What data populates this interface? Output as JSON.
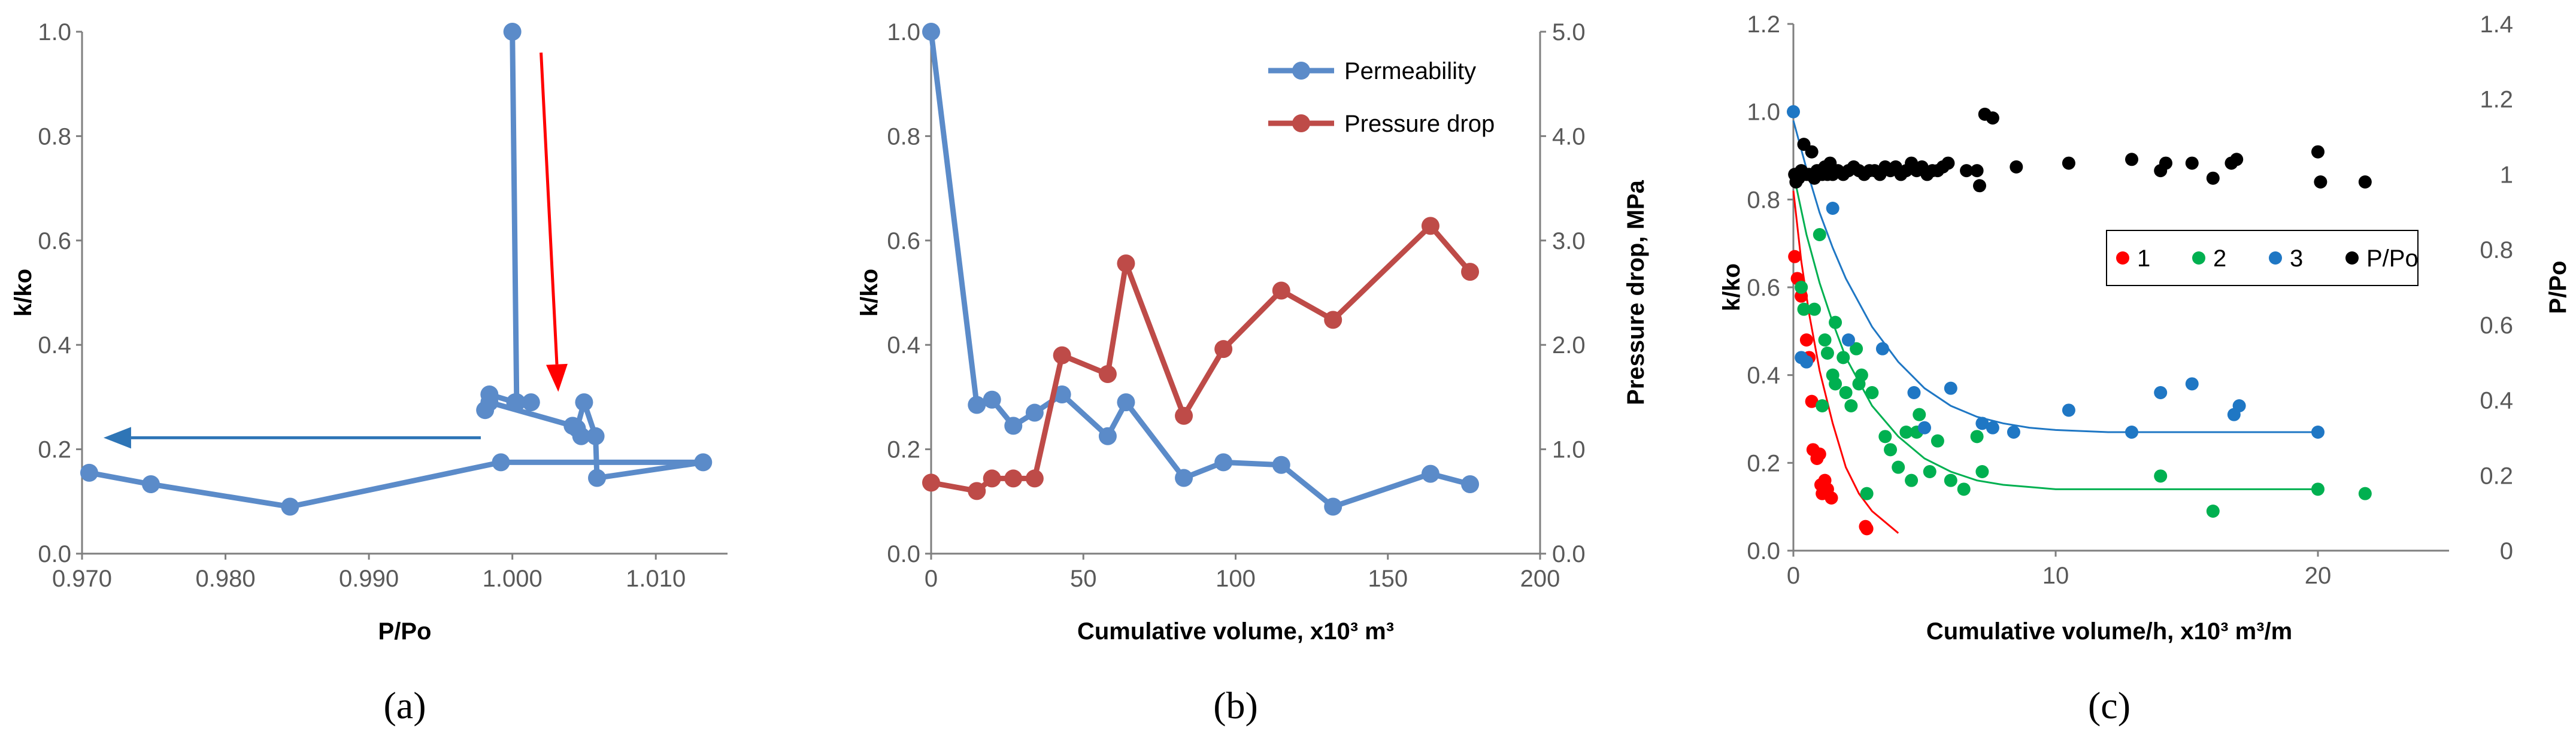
{
  "chart_data": [
    {
      "type": "line",
      "panel_label": "(a)",
      "xlabel": "P/Po",
      "ylabel": "k/ko",
      "xlim": [
        0.97,
        1.015
      ],
      "ylim": [
        0,
        1.0
      ],
      "xticks": [
        "0.970",
        "0.980",
        "0.990",
        "1.000",
        "1.010"
      ],
      "yticks": [
        "0.0",
        "0.2",
        "0.4",
        "0.6",
        "0.8",
        "1.0"
      ],
      "color": "#5B8BC9",
      "series": [
        {
          "x": [
            1.0,
            1.0003,
            1.0013,
            1.0002,
            0.9984,
            0.9981,
            0.9984,
            1.0042,
            1.0048,
            1.0045,
            1.005,
            1.0058,
            1.0059,
            1.0133,
            0.9992,
            0.9845,
            0.9748,
            0.9705
          ],
          "y": [
            1.0,
            0.29,
            0.29,
            0.29,
            0.305,
            0.275,
            0.29,
            0.245,
            0.225,
            0.24,
            0.29,
            0.225,
            0.145,
            0.175,
            0.175,
            0.09,
            0.133,
            0.155
          ]
        }
      ],
      "annotations": [
        {
          "type": "arrow",
          "color": "#FF0000",
          "from": [
            1.002,
            0.96
          ],
          "to": [
            1.0032,
            0.31
          ]
        },
        {
          "type": "arrow",
          "color": "#2E75B6",
          "from": [
            0.9978,
            0.222
          ],
          "to": [
            0.9715,
            0.222
          ]
        }
      ]
    },
    {
      "type": "line",
      "panel_label": "(b)",
      "xlabel": "Cumulative volume, x10³ m³",
      "ylabel": "k/ko",
      "y2label": "Pressure drop, MPa",
      "xlim": [
        0,
        200
      ],
      "ylim": [
        0,
        1.0
      ],
      "y2lim": [
        0,
        5.0
      ],
      "xticks": [
        "0",
        "50",
        "100",
        "150",
        "200"
      ],
      "yticks": [
        "0.0",
        "0.2",
        "0.4",
        "0.6",
        "0.8",
        "1.0"
      ],
      "y2ticks": [
        "0.0",
        "1.0",
        "2.0",
        "3.0",
        "4.0",
        "5.0"
      ],
      "legend_position": "top-right",
      "series": [
        {
          "name": "Permeability",
          "axis": "left",
          "color": "#5B8BC9",
          "x": [
            0,
            15,
            20,
            27,
            34,
            43,
            58,
            64,
            83,
            96,
            115,
            132,
            164,
            177
          ],
          "y": [
            1.0,
            0.285,
            0.295,
            0.245,
            0.27,
            0.305,
            0.225,
            0.29,
            0.145,
            0.175,
            0.17,
            0.09,
            0.153,
            0.133
          ]
        },
        {
          "name": "Pressure drop",
          "axis": "right",
          "color": "#BE4B48",
          "x": [
            0,
            15,
            20,
            27,
            34,
            43,
            58,
            64,
            83,
            96,
            115,
            132,
            164,
            177
          ],
          "y": [
            0.68,
            0.6,
            0.72,
            0.72,
            0.72,
            1.9,
            1.72,
            2.78,
            1.32,
            1.96,
            2.52,
            2.24,
            3.14,
            2.7
          ]
        }
      ]
    },
    {
      "type": "scatter",
      "panel_label": "(c)",
      "xlabel": "Cumulative volume/h, x10³ m³/m",
      "ylabel": "k/ko",
      "y2label": "P/Po",
      "xlim": [
        0,
        25
      ],
      "ylim": [
        0,
        1.2
      ],
      "y2lim": [
        0,
        1.4
      ],
      "xticks": [
        "0",
        "10",
        "20"
      ],
      "yticks": [
        "0.0",
        "0.2",
        "0.4",
        "0.6",
        "0.8",
        "1.0",
        "1.2"
      ],
      "y2ticks": [
        "0",
        "0.2",
        "0.4",
        "0.6",
        "0.8",
        "1",
        "1.2",
        "1.4"
      ],
      "legend_position": "right",
      "series": [
        {
          "name": "1",
          "axis": "left",
          "color": "#FF0000",
          "points": [
            [
              0.05,
              0.67
            ],
            [
              0.15,
              0.62
            ],
            [
              0.3,
              0.58
            ],
            [
              0.5,
              0.48
            ],
            [
              0.6,
              0.44
            ],
            [
              0.7,
              0.34
            ],
            [
              0.75,
              0.23
            ],
            [
              0.9,
              0.21
            ],
            [
              1.0,
              0.22
            ],
            [
              1.05,
              0.15
            ],
            [
              1.1,
              0.13
            ],
            [
              1.2,
              0.16
            ],
            [
              1.3,
              0.14
            ],
            [
              1.45,
              0.12
            ],
            [
              2.75,
              0.055
            ],
            [
              2.8,
              0.05
            ]
          ],
          "fit": [
            [
              0,
              0.82
            ],
            [
              0.3,
              0.66
            ],
            [
              0.6,
              0.54
            ],
            [
              1,
              0.41
            ],
            [
              1.5,
              0.29
            ],
            [
              2,
              0.19
            ],
            [
              2.5,
              0.13
            ],
            [
              3,
              0.09
            ],
            [
              3.5,
              0.065
            ],
            [
              4,
              0.04
            ]
          ]
        },
        {
          "name": "2",
          "axis": "left",
          "color": "#00B050",
          "points": [
            [
              0.3,
              0.6
            ],
            [
              0.4,
              0.55
            ],
            [
              0.8,
              0.55
            ],
            [
              1.0,
              0.72
            ],
            [
              1.2,
              0.48
            ],
            [
              1.3,
              0.45
            ],
            [
              1.5,
              0.4
            ],
            [
              1.6,
              0.52
            ],
            [
              1.9,
              0.44
            ],
            [
              2.0,
              0.36
            ],
            [
              2.2,
              0.33
            ],
            [
              2.4,
              0.46
            ],
            [
              2.5,
              0.38
            ],
            [
              2.6,
              0.4
            ],
            [
              3.0,
              0.36
            ],
            [
              3.5,
              0.26
            ],
            [
              3.7,
              0.23
            ],
            [
              4.0,
              0.19
            ],
            [
              4.3,
              0.27
            ],
            [
              4.5,
              0.16
            ],
            [
              4.7,
              0.27
            ],
            [
              4.8,
              0.31
            ],
            [
              5.2,
              0.18
            ],
            [
              5.5,
              0.25
            ],
            [
              6.0,
              0.16
            ],
            [
              6.5,
              0.14
            ],
            [
              7.0,
              0.26
            ],
            [
              7.2,
              0.18
            ],
            [
              14.0,
              0.17
            ],
            [
              16.0,
              0.09
            ],
            [
              20.0,
              0.14
            ],
            [
              21.8,
              0.13
            ],
            [
              2.8,
              0.13
            ],
            [
              1.1,
              0.33
            ],
            [
              1.6,
              0.38
            ]
          ],
          "fit": [
            [
              0,
              0.86
            ],
            [
              0.5,
              0.72
            ],
            [
              1,
              0.61
            ],
            [
              1.5,
              0.52
            ],
            [
              2,
              0.44
            ],
            [
              3,
              0.33
            ],
            [
              4,
              0.26
            ],
            [
              5,
              0.21
            ],
            [
              6,
              0.18
            ],
            [
              7,
              0.16
            ],
            [
              8,
              0.15
            ],
            [
              9,
              0.145
            ],
            [
              10,
              0.14
            ],
            [
              12,
              0.14
            ],
            [
              15,
              0.14
            ],
            [
              20,
              0.14
            ]
          ]
        },
        {
          "name": "3",
          "axis": "left",
          "color": "#1F77C4",
          "points": [
            [
              0,
              1.0
            ],
            [
              0.3,
              0.44
            ],
            [
              0.5,
              0.43
            ],
            [
              1.5,
              0.78
            ],
            [
              2.1,
              0.48
            ],
            [
              3.4,
              0.46
            ],
            [
              4.6,
              0.36
            ],
            [
              6.0,
              0.37
            ],
            [
              7.2,
              0.29
            ],
            [
              7.6,
              0.28
            ],
            [
              8.4,
              0.27
            ],
            [
              10.5,
              0.32
            ],
            [
              12.9,
              0.27
            ],
            [
              14.0,
              0.36
            ],
            [
              15.2,
              0.38
            ],
            [
              16.8,
              0.31
            ],
            [
              17.0,
              0.33
            ],
            [
              20.0,
              0.27
            ],
            [
              5.0,
              0.28
            ]
          ],
          "fit": [
            [
              0,
              0.98
            ],
            [
              0.5,
              0.87
            ],
            [
              1,
              0.77
            ],
            [
              1.5,
              0.69
            ],
            [
              2,
              0.62
            ],
            [
              3,
              0.51
            ],
            [
              4,
              0.43
            ],
            [
              5,
              0.37
            ],
            [
              6,
              0.33
            ],
            [
              7,
              0.305
            ],
            [
              8,
              0.29
            ],
            [
              9,
              0.28
            ],
            [
              10,
              0.275
            ],
            [
              12,
              0.27
            ],
            [
              15,
              0.27
            ],
            [
              20,
              0.27
            ]
          ]
        },
        {
          "name": "P/Po",
          "axis": "right",
          "color": "#000000",
          "points": [
            [
              0.05,
              1.0
            ],
            [
              0.1,
              0.98
            ],
            [
              0.2,
              0.99
            ],
            [
              0.3,
              1.01
            ],
            [
              0.4,
              1.08
            ],
            [
              0.5,
              1.0
            ],
            [
              0.6,
              1.0
            ],
            [
              0.7,
              1.06
            ],
            [
              0.8,
              0.99
            ],
            [
              0.9,
              1.01
            ],
            [
              1.0,
              1.01
            ],
            [
              1.1,
              1.0
            ],
            [
              1.2,
              1.02
            ],
            [
              1.3,
              1.0
            ],
            [
              1.4,
              1.03
            ],
            [
              1.5,
              1.0
            ],
            [
              1.7,
              1.01
            ],
            [
              1.9,
              1.0
            ],
            [
              2.1,
              1.01
            ],
            [
              2.3,
              1.02
            ],
            [
              2.5,
              1.01
            ],
            [
              2.7,
              1.0
            ],
            [
              2.9,
              1.01
            ],
            [
              3.1,
              1.01
            ],
            [
              3.3,
              1.0
            ],
            [
              3.5,
              1.02
            ],
            [
              3.7,
              1.01
            ],
            [
              3.9,
              1.02
            ],
            [
              4.1,
              1.0
            ],
            [
              4.3,
              1.01
            ],
            [
              4.5,
              1.03
            ],
            [
              4.7,
              1.01
            ],
            [
              4.9,
              1.02
            ],
            [
              5.1,
              1.0
            ],
            [
              5.3,
              1.01
            ],
            [
              5.5,
              1.01
            ],
            [
              5.7,
              1.02
            ],
            [
              5.9,
              1.03
            ],
            [
              6.6,
              1.01
            ],
            [
              7.0,
              1.01
            ],
            [
              7.1,
              0.97
            ],
            [
              7.3,
              1.16
            ],
            [
              7.6,
              1.15
            ],
            [
              8.5,
              1.02
            ],
            [
              10.5,
              1.03
            ],
            [
              12.9,
              1.04
            ],
            [
              14.0,
              1.01
            ],
            [
              14.2,
              1.03
            ],
            [
              15.2,
              1.03
            ],
            [
              16.0,
              0.99
            ],
            [
              16.7,
              1.03
            ],
            [
              16.9,
              1.04
            ],
            [
              20.0,
              1.06
            ],
            [
              20.1,
              0.98
            ],
            [
              21.8,
              0.98
            ]
          ]
        }
      ]
    }
  ]
}
